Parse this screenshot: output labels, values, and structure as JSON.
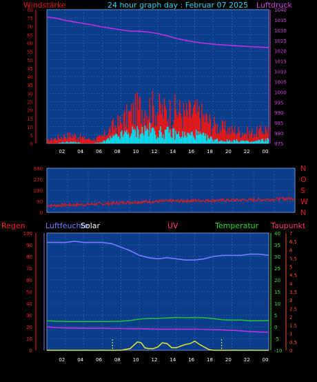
{
  "header": {
    "left_label": "Windstärke",
    "title": "24 hour graph day : Februar 07 2025",
    "right_label": "Luftdruck"
  },
  "colors": {
    "background": "#000000",
    "plot_bg": "#0a3e8c",
    "grid": "#3b6fb8",
    "wind": "#e81818",
    "gust": "#00e0f0",
    "pressure": "#c030e0",
    "direction": "#e81818",
    "humidity": "#7b7bff",
    "temperature": "#20c030",
    "dewpoint": "#c030e0",
    "uv": "#e0e030",
    "rain_axis": "#ff2222",
    "humidity_axis": "#7b7bff",
    "solar_label": "#ffffff",
    "uv_label": "#ff3070",
    "temperature_label": "#20e020",
    "dewpoint_label": "#ff3070"
  },
  "chart_data": [
    {
      "id": "wind-pressure",
      "type": "line",
      "title": "24 hour graph day : Februar 07 2025",
      "x_tick_labels": [
        "02",
        "04",
        "06",
        "08",
        "10",
        "12",
        "14",
        "16",
        "18",
        "20",
        "22",
        "00"
      ],
      "x_hours": [
        0,
        24
      ],
      "left_axis": {
        "label": "Windstärke",
        "ticks": [
          "0",
          "5",
          "10",
          "15",
          "20",
          "25",
          "30",
          "35",
          "40",
          "45",
          "50",
          "55",
          "60",
          "65",
          "70",
          "75",
          "80"
        ],
        "range": [
          0,
          80
        ]
      },
      "right_axis": {
        "label": "Luftdruck",
        "ticks": [
          "975",
          "980",
          "985",
          "990",
          "995",
          "1000",
          "1005",
          "1010",
          "1015",
          "1020",
          "1025",
          "1030",
          "1035",
          "1040"
        ],
        "range": [
          975,
          1040
        ]
      },
      "series": [
        {
          "role": "pressure",
          "x": [
            0,
            1,
            2,
            3,
            4,
            5,
            6,
            7,
            8,
            9,
            10,
            11,
            12,
            13,
            14,
            15,
            16,
            17,
            18,
            19,
            20,
            21,
            22,
            23,
            24
          ],
          "y": [
            1036.5,
            1035.8,
            1034.8,
            1034.0,
            1033.3,
            1032.5,
            1031.6,
            1030.9,
            1030.2,
            1029.6,
            1029.5,
            1029.1,
            1028.4,
            1027.3,
            1026.0,
            1025.1,
            1024.3,
            1023.7,
            1023.2,
            1022.9,
            1022.6,
            1022.3,
            1022.0,
            1021.8,
            1021.6
          ]
        },
        {
          "role": "wind",
          "x": [
            0,
            1,
            2,
            3,
            4,
            5,
            6,
            7,
            8,
            9,
            10,
            11,
            12,
            13,
            14,
            15,
            16,
            17,
            18,
            19,
            20,
            21,
            22,
            23,
            24
          ],
          "y": [
            2,
            4,
            6,
            6,
            4,
            3,
            5,
            12,
            16,
            22,
            27,
            28,
            26,
            24,
            25,
            22,
            24,
            20,
            14,
            12,
            10,
            9,
            8,
            9,
            12
          ]
        },
        {
          "role": "gust",
          "x": [
            0,
            1,
            2,
            3,
            4,
            5,
            6,
            7,
            8,
            9,
            10,
            11,
            12,
            13,
            14,
            15,
            16,
            17,
            18,
            19,
            20,
            21,
            22,
            23,
            24
          ],
          "y": [
            0,
            0,
            1,
            1,
            0,
            0,
            1,
            4,
            6,
            8,
            9,
            10,
            8,
            8,
            7,
            6,
            7,
            5,
            3,
            2,
            2,
            2,
            1,
            2,
            3
          ]
        }
      ]
    },
    {
      "id": "wind-direction",
      "type": "line",
      "x_hours": [
        0,
        24
      ],
      "left_axis": {
        "ticks": [
          "0",
          "90",
          "180",
          "270",
          "360"
        ],
        "range": [
          0,
          360
        ]
      },
      "right_axis": {
        "ticks": [
          "N",
          "W",
          "S",
          "O",
          "N"
        ]
      },
      "series": [
        {
          "role": "direction",
          "x": [
            0,
            2,
            4,
            6,
            8,
            10,
            12,
            14,
            16,
            18,
            20,
            22,
            24
          ],
          "y": [
            55,
            60,
            65,
            72,
            82,
            88,
            92,
            96,
            98,
            100,
            102,
            108,
            115
          ]
        }
      ]
    },
    {
      "id": "climate",
      "type": "line",
      "x_tick_labels": [
        "02",
        "04",
        "06",
        "08",
        "10",
        "12",
        "14",
        "16",
        "18",
        "20",
        "22",
        "00"
      ],
      "x_hours": [
        0,
        24
      ],
      "labels": {
        "rain": "Regen",
        "humidity": "Luftfeuchte",
        "solar": "Solar",
        "uv": "UV",
        "temperature": "Temperatur",
        "dewpoint": "Taupunkt"
      },
      "rain_axis": {
        "ticks": [
          "0",
          "10",
          "20",
          "30",
          "40",
          "50",
          "60",
          "70",
          "80",
          "90",
          "100"
        ],
        "range": [
          0,
          100
        ]
      },
      "temperature_axis": {
        "ticks": [
          "-10",
          "-5",
          "0",
          "5",
          "10",
          "15",
          "20",
          "25",
          "30",
          "35",
          "40"
        ],
        "range": [
          -10,
          40
        ]
      },
      "uv_axis": {
        "ticks": [
          "0",
          "0,5",
          "1",
          "1,5",
          "2",
          "2,5",
          "3",
          "3,5",
          "4",
          "4,5",
          "5",
          "5,5",
          "6",
          "6,5",
          "7"
        ],
        "range": [
          0,
          7
        ]
      },
      "sunrise_hour": 7.1,
      "sunset_hour": 18.9,
      "series": [
        {
          "role": "humidity",
          "x": [
            0,
            1,
            2,
            3,
            4,
            5,
            6,
            7,
            8,
            9,
            10,
            11,
            12,
            13,
            14,
            15,
            16,
            17,
            18,
            19,
            20,
            21,
            22,
            23,
            24
          ],
          "y": [
            92,
            92,
            92,
            93,
            92,
            92,
            92,
            91,
            88,
            85,
            81,
            79,
            78,
            79,
            78,
            77,
            77,
            78,
            80,
            81,
            81,
            81,
            82,
            82,
            81
          ]
        },
        {
          "role": "temperature",
          "x": [
            0,
            1,
            2,
            3,
            4,
            5,
            6,
            7,
            8,
            9,
            10,
            11,
            12,
            13,
            14,
            15,
            16,
            17,
            18,
            19,
            20,
            21,
            22,
            23,
            24
          ],
          "y": [
            2.6,
            2.4,
            2.3,
            2.3,
            2.3,
            2.3,
            2.3,
            2.3,
            2.4,
            2.7,
            3.3,
            3.6,
            3.6,
            3.8,
            4.0,
            3.9,
            4.0,
            3.9,
            3.5,
            3.0,
            2.9,
            2.9,
            2.6,
            2.6,
            2.7
          ]
        },
        {
          "role": "dewpoint",
          "x": [
            0,
            1,
            2,
            3,
            4,
            5,
            6,
            7,
            8,
            9,
            10,
            11,
            12,
            13,
            14,
            15,
            16,
            17,
            18,
            19,
            20,
            21,
            22,
            23,
            24
          ],
          "y": [
            0.0,
            -0.3,
            -0.5,
            -0.5,
            -0.6,
            -0.6,
            -0.6,
            -0.7,
            -0.7,
            -0.8,
            -0.8,
            -0.9,
            -1.0,
            -1.0,
            -1.0,
            -1.0,
            -1.0,
            -1.1,
            -1.2,
            -1.3,
            -1.5,
            -1.7,
            -2.0,
            -2.2,
            -2.3
          ]
        },
        {
          "role": "uv",
          "x": [
            0,
            7,
            8,
            9,
            9.8,
            10.2,
            10.6,
            11,
            11.5,
            12,
            12.5,
            13,
            13.5,
            14,
            14.5,
            15,
            15.5,
            16,
            16.5,
            17,
            17.5,
            18,
            24
          ],
          "y": [
            0,
            0,
            0,
            0.1,
            0.5,
            0.45,
            0.15,
            0.1,
            0.1,
            0.2,
            0.45,
            0.4,
            0.15,
            0.15,
            0.25,
            0.35,
            0.4,
            0.55,
            0.35,
            0.2,
            0.05,
            0,
            0
          ]
        }
      ]
    }
  ]
}
